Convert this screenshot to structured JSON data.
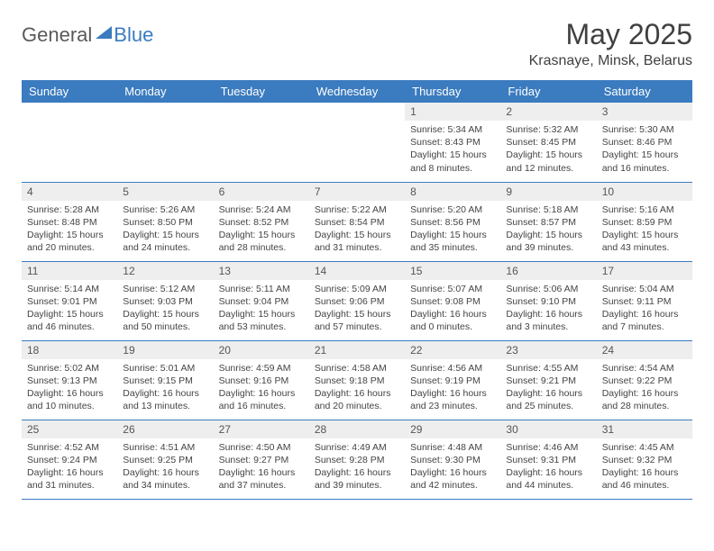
{
  "logo": {
    "text1": "General",
    "text2": "Blue"
  },
  "title": "May 2025",
  "location": "Krasnaye, Minsk, Belarus",
  "colors": {
    "header_bg": "#3b7bbf",
    "header_text": "#ffffff",
    "day_number_bg": "#eeeeee",
    "border": "#3b7bbf",
    "title_color": "#404040",
    "body_text": "#444444"
  },
  "fonts": {
    "title_size": 32,
    "location_size": 16,
    "header_size": 13,
    "daynum_size": 12,
    "info_size": 10.5
  },
  "day_headers": [
    "Sunday",
    "Monday",
    "Tuesday",
    "Wednesday",
    "Thursday",
    "Friday",
    "Saturday"
  ],
  "weeks": [
    [
      null,
      null,
      null,
      null,
      {
        "n": "1",
        "sr": "Sunrise: 5:34 AM",
        "ss": "Sunset: 8:43 PM",
        "dl": "Daylight: 15 hours and 8 minutes."
      },
      {
        "n": "2",
        "sr": "Sunrise: 5:32 AM",
        "ss": "Sunset: 8:45 PM",
        "dl": "Daylight: 15 hours and 12 minutes."
      },
      {
        "n": "3",
        "sr": "Sunrise: 5:30 AM",
        "ss": "Sunset: 8:46 PM",
        "dl": "Daylight: 15 hours and 16 minutes."
      }
    ],
    [
      {
        "n": "4",
        "sr": "Sunrise: 5:28 AM",
        "ss": "Sunset: 8:48 PM",
        "dl": "Daylight: 15 hours and 20 minutes."
      },
      {
        "n": "5",
        "sr": "Sunrise: 5:26 AM",
        "ss": "Sunset: 8:50 PM",
        "dl": "Daylight: 15 hours and 24 minutes."
      },
      {
        "n": "6",
        "sr": "Sunrise: 5:24 AM",
        "ss": "Sunset: 8:52 PM",
        "dl": "Daylight: 15 hours and 28 minutes."
      },
      {
        "n": "7",
        "sr": "Sunrise: 5:22 AM",
        "ss": "Sunset: 8:54 PM",
        "dl": "Daylight: 15 hours and 31 minutes."
      },
      {
        "n": "8",
        "sr": "Sunrise: 5:20 AM",
        "ss": "Sunset: 8:56 PM",
        "dl": "Daylight: 15 hours and 35 minutes."
      },
      {
        "n": "9",
        "sr": "Sunrise: 5:18 AM",
        "ss": "Sunset: 8:57 PM",
        "dl": "Daylight: 15 hours and 39 minutes."
      },
      {
        "n": "10",
        "sr": "Sunrise: 5:16 AM",
        "ss": "Sunset: 8:59 PM",
        "dl": "Daylight: 15 hours and 43 minutes."
      }
    ],
    [
      {
        "n": "11",
        "sr": "Sunrise: 5:14 AM",
        "ss": "Sunset: 9:01 PM",
        "dl": "Daylight: 15 hours and 46 minutes."
      },
      {
        "n": "12",
        "sr": "Sunrise: 5:12 AM",
        "ss": "Sunset: 9:03 PM",
        "dl": "Daylight: 15 hours and 50 minutes."
      },
      {
        "n": "13",
        "sr": "Sunrise: 5:11 AM",
        "ss": "Sunset: 9:04 PM",
        "dl": "Daylight: 15 hours and 53 minutes."
      },
      {
        "n": "14",
        "sr": "Sunrise: 5:09 AM",
        "ss": "Sunset: 9:06 PM",
        "dl": "Daylight: 15 hours and 57 minutes."
      },
      {
        "n": "15",
        "sr": "Sunrise: 5:07 AM",
        "ss": "Sunset: 9:08 PM",
        "dl": "Daylight: 16 hours and 0 minutes."
      },
      {
        "n": "16",
        "sr": "Sunrise: 5:06 AM",
        "ss": "Sunset: 9:10 PM",
        "dl": "Daylight: 16 hours and 3 minutes."
      },
      {
        "n": "17",
        "sr": "Sunrise: 5:04 AM",
        "ss": "Sunset: 9:11 PM",
        "dl": "Daylight: 16 hours and 7 minutes."
      }
    ],
    [
      {
        "n": "18",
        "sr": "Sunrise: 5:02 AM",
        "ss": "Sunset: 9:13 PM",
        "dl": "Daylight: 16 hours and 10 minutes."
      },
      {
        "n": "19",
        "sr": "Sunrise: 5:01 AM",
        "ss": "Sunset: 9:15 PM",
        "dl": "Daylight: 16 hours and 13 minutes."
      },
      {
        "n": "20",
        "sr": "Sunrise: 4:59 AM",
        "ss": "Sunset: 9:16 PM",
        "dl": "Daylight: 16 hours and 16 minutes."
      },
      {
        "n": "21",
        "sr": "Sunrise: 4:58 AM",
        "ss": "Sunset: 9:18 PM",
        "dl": "Daylight: 16 hours and 20 minutes."
      },
      {
        "n": "22",
        "sr": "Sunrise: 4:56 AM",
        "ss": "Sunset: 9:19 PM",
        "dl": "Daylight: 16 hours and 23 minutes."
      },
      {
        "n": "23",
        "sr": "Sunrise: 4:55 AM",
        "ss": "Sunset: 9:21 PM",
        "dl": "Daylight: 16 hours and 25 minutes."
      },
      {
        "n": "24",
        "sr": "Sunrise: 4:54 AM",
        "ss": "Sunset: 9:22 PM",
        "dl": "Daylight: 16 hours and 28 minutes."
      }
    ],
    [
      {
        "n": "25",
        "sr": "Sunrise: 4:52 AM",
        "ss": "Sunset: 9:24 PM",
        "dl": "Daylight: 16 hours and 31 minutes."
      },
      {
        "n": "26",
        "sr": "Sunrise: 4:51 AM",
        "ss": "Sunset: 9:25 PM",
        "dl": "Daylight: 16 hours and 34 minutes."
      },
      {
        "n": "27",
        "sr": "Sunrise: 4:50 AM",
        "ss": "Sunset: 9:27 PM",
        "dl": "Daylight: 16 hours and 37 minutes."
      },
      {
        "n": "28",
        "sr": "Sunrise: 4:49 AM",
        "ss": "Sunset: 9:28 PM",
        "dl": "Daylight: 16 hours and 39 minutes."
      },
      {
        "n": "29",
        "sr": "Sunrise: 4:48 AM",
        "ss": "Sunset: 9:30 PM",
        "dl": "Daylight: 16 hours and 42 minutes."
      },
      {
        "n": "30",
        "sr": "Sunrise: 4:46 AM",
        "ss": "Sunset: 9:31 PM",
        "dl": "Daylight: 16 hours and 44 minutes."
      },
      {
        "n": "31",
        "sr": "Sunrise: 4:45 AM",
        "ss": "Sunset: 9:32 PM",
        "dl": "Daylight: 16 hours and 46 minutes."
      }
    ]
  ]
}
